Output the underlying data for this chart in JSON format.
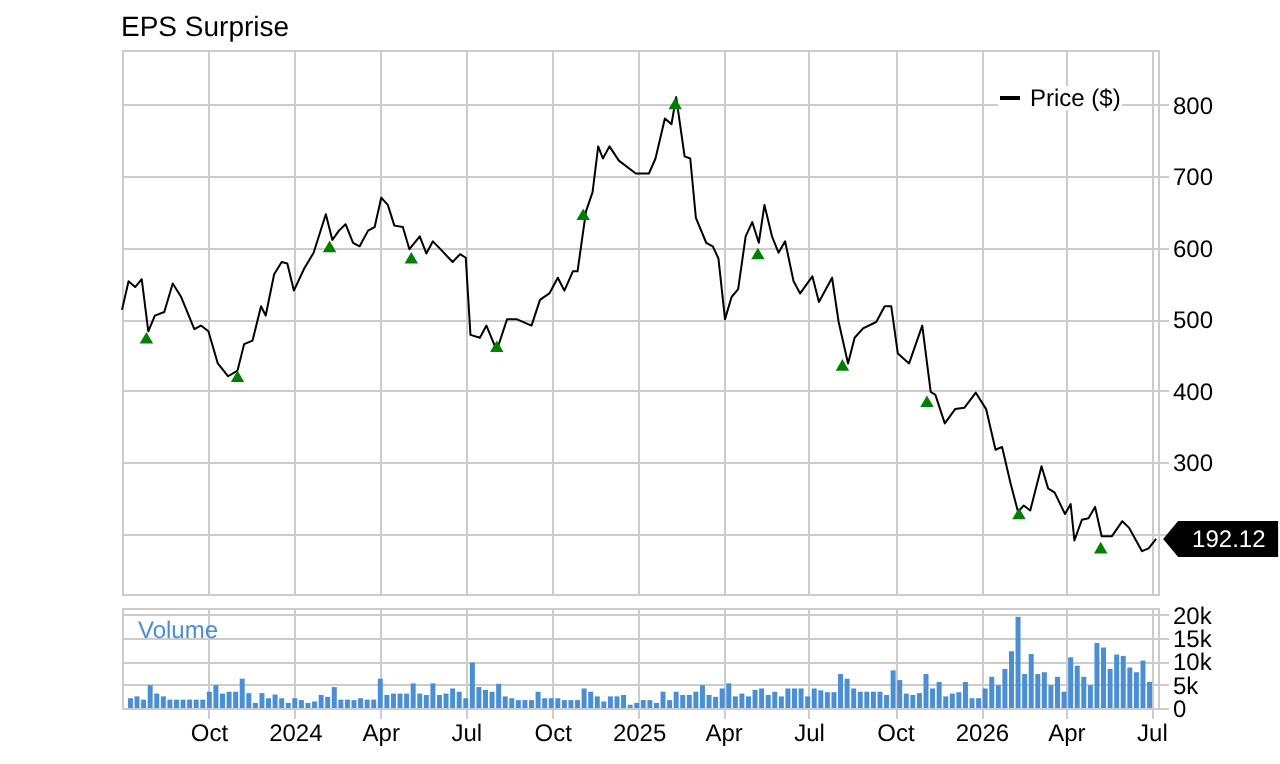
{
  "chart_data": [
    {
      "type": "line",
      "title": "EPS Surprise",
      "x": [
        "2023-07-01",
        "2023-07-08",
        "2023-07-15",
        "2023-07-22",
        "2023-07-29",
        "2023-08-05",
        "2023-08-15",
        "2023-08-24",
        "2023-09-02",
        "2023-09-16",
        "2023-09-23",
        "2023-10-01",
        "2023-10-11",
        "2023-10-22",
        "2023-11-01",
        "2023-11-08",
        "2023-11-17",
        "2023-11-26",
        "2023-12-01",
        "2023-12-10",
        "2023-12-18",
        "2023-12-24",
        "2023-12-31",
        "2024-01-11",
        "2024-01-21",
        "2024-02-03",
        "2024-02-10",
        "2024-02-17",
        "2024-02-24",
        "2024-03-03",
        "2024-03-10",
        "2024-03-19",
        "2024-03-26",
        "2024-04-02",
        "2024-04-09",
        "2024-04-16",
        "2024-04-25",
        "2024-05-02",
        "2024-05-13",
        "2024-05-20",
        "2024-05-27",
        "2024-06-04",
        "2024-06-17",
        "2024-06-25",
        "2024-07-01",
        "2024-07-06",
        "2024-07-16",
        "2024-07-23",
        "2024-08-03",
        "2024-08-14",
        "2024-08-24",
        "2024-09-09",
        "2024-09-18",
        "2024-09-28",
        "2024-10-07",
        "2024-10-14",
        "2024-10-23",
        "2024-10-28",
        "2024-11-06",
        "2024-11-13",
        "2024-11-19",
        "2024-11-24",
        "2024-12-01",
        "2024-12-11",
        "2024-12-29",
        "2025-01-12",
        "2025-01-19",
        "2025-01-29",
        "2025-02-05",
        "2025-02-10",
        "2025-02-19",
        "2025-02-25",
        "2025-03-03",
        "2025-03-14",
        "2025-03-21",
        "2025-03-27",
        "2025-04-03",
        "2025-04-10",
        "2025-04-17",
        "2025-04-25",
        "2025-05-02",
        "2025-05-09",
        "2025-05-15",
        "2025-05-23",
        "2025-05-30",
        "2025-06-06",
        "2025-06-15",
        "2025-06-22",
        "2025-07-05",
        "2025-07-12",
        "2025-07-26",
        "2025-08-02",
        "2025-08-12",
        "2025-08-19",
        "2025-08-28",
        "2025-09-11",
        "2025-09-20",
        "2025-09-27",
        "2025-10-04",
        "2025-10-16",
        "2025-10-30",
        "2025-11-08",
        "2025-11-13",
        "2025-11-23",
        "2025-12-04",
        "2025-12-14",
        "2025-12-26",
        "2026-01-06",
        "2026-01-16",
        "2026-01-23",
        "2026-02-01",
        "2026-02-09",
        "2026-02-15",
        "2026-02-22",
        "2026-03-06",
        "2026-03-13",
        "2026-03-20",
        "2026-03-31",
        "2026-04-06",
        "2026-04-10",
        "2026-04-18",
        "2026-04-25",
        "2026-05-02",
        "2026-05-09",
        "2026-05-20",
        "2026-05-31",
        "2026-06-07",
        "2026-06-21",
        "2026-06-28",
        "2026-07-06"
      ],
      "series": [
        {
          "name": "Price ($)",
          "color": "#000000",
          "values": [
            513,
            553,
            545,
            556,
            483,
            505,
            510,
            550,
            531,
            486,
            491,
            483,
            438,
            420,
            428,
            465,
            470,
            518,
            505,
            563,
            580,
            578,
            540,
            571,
            593,
            647,
            611,
            624,
            633,
            607,
            602,
            624,
            629,
            670,
            660,
            631,
            629,
            598,
            616,
            592,
            609,
            598,
            580,
            591,
            586,
            478,
            474,
            491,
            456,
            500,
            500,
            491,
            527,
            536,
            558,
            540,
            567,
            567,
            651,
            678,
            742,
            725,
            742,
            722,
            704,
            704,
            725,
            781,
            773,
            811,
            728,
            725,
            642,
            607,
            602,
            585,
            500,
            531,
            542,
            616,
            636,
            607,
            660,
            616,
            593,
            609,
            553,
            536,
            560,
            524,
            558,
            496,
            438,
            474,
            487,
            496,
            518,
            518,
            452,
            438,
            491,
            398,
            394,
            354,
            374,
            376,
            397,
            374,
            317,
            321,
            270,
            230,
            239,
            232,
            294,
            263,
            257,
            227,
            241,
            190,
            219,
            221,
            237,
            196,
            196,
            217,
            208,
            175,
            179,
            192.12
          ]
        },
        {
          "type": "scatter",
          "marker": "triangle",
          "color": "#008000",
          "x": [
            "2023-07-27",
            "2023-11-01",
            "2024-02-07",
            "2024-05-04",
            "2024-08-03",
            "2024-11-03",
            "2025-02-09",
            "2025-05-08",
            "2025-08-06",
            "2025-11-04",
            "2026-02-10",
            "2026-05-08"
          ],
          "values": [
            474,
            420,
            602,
            586,
            462,
            647,
            802,
            592,
            436,
            385,
            228,
            180
          ]
        }
      ],
      "xlim": [
        "2023-07-01",
        "2026-07-08"
      ],
      "xticks": [
        {
          "value": "2023-10-01",
          "label": null
        },
        {
          "value": "2024-01-01",
          "label": null
        },
        {
          "value": "2024-04-01",
          "label": null
        },
        {
          "value": "2024-07-01",
          "label": null
        },
        {
          "value": "2024-10-01",
          "label": null
        },
        {
          "value": "2025-01-01",
          "label": null
        },
        {
          "value": "2025-04-01",
          "label": null
        },
        {
          "value": "2025-07-01",
          "label": null
        },
        {
          "value": "2025-10-01",
          "label": null
        },
        {
          "value": "2026-01-01",
          "label": null
        },
        {
          "value": "2026-04-01",
          "label": null
        },
        {
          "value": "2026-07-01",
          "label": null
        }
      ],
      "ylim": [
        115,
        877
      ],
      "yticks": [
        {
          "value": 200,
          "label": null
        },
        300,
        400,
        500,
        600,
        700,
        800
      ],
      "grid": true,
      "legend": "top right",
      "tick_labels": "y",
      "annotations": [
        {
          "text": "192.12",
          "x": "2026-07-06",
          "y": 192.12
        }
      ]
    },
    {
      "type": "bar",
      "title": "Volume",
      "color": "#4a8fd4",
      "x": [
        "2023-07-10",
        "2023-07-17",
        "2023-07-24",
        "2023-07-31",
        "2023-08-07",
        "2023-08-14",
        "2023-08-21",
        "2023-08-28",
        "2023-09-04",
        "2023-09-11",
        "2023-09-18",
        "2023-09-25",
        "2023-10-02",
        "2023-10-09",
        "2023-10-16",
        "2023-10-23",
        "2023-10-30",
        "2023-11-06",
        "2023-11-13",
        "2023-11-20",
        "2023-11-27",
        "2023-12-04",
        "2023-12-11",
        "2023-12-18",
        "2023-12-25",
        "2024-01-01",
        "2024-01-08",
        "2024-01-15",
        "2024-01-22",
        "2024-01-29",
        "2024-02-05",
        "2024-02-12",
        "2024-02-19",
        "2024-02-26",
        "2024-03-04",
        "2024-03-11",
        "2024-03-18",
        "2024-03-25",
        "2024-04-01",
        "2024-04-08",
        "2024-04-15",
        "2024-04-22",
        "2024-04-29",
        "2024-05-06",
        "2024-05-13",
        "2024-05-20",
        "2024-05-27",
        "2024-06-03",
        "2024-06-10",
        "2024-06-17",
        "2024-06-24",
        "2024-07-01",
        "2024-07-08",
        "2024-07-15",
        "2024-07-22",
        "2024-07-29",
        "2024-08-05",
        "2024-08-12",
        "2024-08-19",
        "2024-08-26",
        "2024-09-02",
        "2024-09-09",
        "2024-09-16",
        "2024-09-23",
        "2024-09-30",
        "2024-10-07",
        "2024-10-14",
        "2024-10-21",
        "2024-10-28",
        "2024-11-04",
        "2024-11-11",
        "2024-11-18",
        "2024-11-25",
        "2024-12-02",
        "2024-12-09",
        "2024-12-16",
        "2024-12-23",
        "2024-12-30",
        "2025-01-06",
        "2025-01-13",
        "2025-01-20",
        "2025-01-27",
        "2025-02-03",
        "2025-02-10",
        "2025-02-17",
        "2025-02-24",
        "2025-03-03",
        "2025-03-10",
        "2025-03-17",
        "2025-03-24",
        "2025-03-31",
        "2025-04-07",
        "2025-04-14",
        "2025-04-21",
        "2025-04-28",
        "2025-05-05",
        "2025-05-12",
        "2025-05-19",
        "2025-05-26",
        "2025-06-02",
        "2025-06-09",
        "2025-06-16",
        "2025-06-23",
        "2025-06-30",
        "2025-07-07",
        "2025-07-14",
        "2025-07-21",
        "2025-07-28",
        "2025-08-04",
        "2025-08-11",
        "2025-08-18",
        "2025-08-25",
        "2025-09-01",
        "2025-09-08",
        "2025-09-15",
        "2025-09-22",
        "2025-09-29",
        "2025-10-06",
        "2025-10-13",
        "2025-10-20",
        "2025-10-27",
        "2025-11-03",
        "2025-11-10",
        "2025-11-17",
        "2025-11-24",
        "2025-12-01",
        "2025-12-08",
        "2025-12-15",
        "2025-12-22",
        "2025-12-29",
        "2026-01-05",
        "2026-01-12",
        "2026-01-19",
        "2026-01-26",
        "2026-02-02",
        "2026-02-09",
        "2026-02-16",
        "2026-02-23",
        "2026-03-02",
        "2026-03-09",
        "2026-03-16",
        "2026-03-23",
        "2026-03-30",
        "2026-04-06",
        "2026-04-13",
        "2026-04-20",
        "2026-04-27",
        "2026-05-04",
        "2026-05-11",
        "2026-05-18",
        "2026-05-25",
        "2026-06-01",
        "2026-06-08",
        "2026-06-15",
        "2026-06-22",
        "2026-06-29"
      ],
      "values": [
        2100,
        2500,
        1800,
        4900,
        3100,
        2500,
        1800,
        1800,
        1800,
        1800,
        1800,
        1800,
        3500,
        4900,
        3100,
        3500,
        3500,
        6300,
        3200,
        1100,
        3200,
        2100,
        2900,
        2100,
        1100,
        2100,
        1700,
        1100,
        1400,
        2800,
        2400,
        4500,
        1800,
        1800,
        1700,
        2100,
        1800,
        1800,
        6300,
        2800,
        3100,
        3100,
        3100,
        5300,
        3100,
        2800,
        5300,
        2800,
        3100,
        4200,
        3500,
        2100,
        9800,
        4500,
        3900,
        3500,
        5200,
        2500,
        2100,
        1700,
        1700,
        1700,
        3500,
        2100,
        2100,
        2100,
        1700,
        1700,
        1700,
        4200,
        3500,
        2500,
        1400,
        2500,
        2500,
        2800,
        700,
        1100,
        1700,
        1700,
        1100,
        3500,
        1700,
        3500,
        2800,
        2800,
        3500,
        4900,
        2800,
        2400,
        4200,
        5300,
        2500,
        3100,
        2500,
        3900,
        4200,
        2800,
        3500,
        2500,
        4200,
        4200,
        4200,
        2500,
        4200,
        3800,
        3400,
        3400,
        7300,
        6300,
        4200,
        3500,
        3500,
        3500,
        3500,
        2800,
        8100,
        6000,
        3100,
        2800,
        3200,
        7300,
        4200,
        5600,
        2500,
        3100,
        3400,
        5600,
        2100,
        2100,
        4200,
        6700,
        4900,
        8400,
        12200,
        19600,
        7300,
        11600,
        7300,
        7700,
        4900,
        6700,
        3500,
        10900,
        9100,
        6700,
        4900,
        14000,
        13000,
        8400,
        11500,
        11200,
        8700,
        7700,
        10200,
        5600
      ],
      "xlim": [
        "2023-07-01",
        "2026-07-08"
      ],
      "xticks": [
        {
          "value": "2023-10-01",
          "label": "Oct"
        },
        {
          "value": "2024-01-01",
          "label": "2024"
        },
        {
          "value": "2024-04-01",
          "label": "Apr"
        },
        {
          "value": "2024-07-01",
          "label": "Jul"
        },
        {
          "value": "2024-10-01",
          "label": "Oct"
        },
        {
          "value": "2025-01-01",
          "label": "2025"
        },
        {
          "value": "2025-04-01",
          "label": "Apr"
        },
        {
          "value": "2025-07-01",
          "label": "Jul"
        },
        {
          "value": "2025-10-01",
          "label": "Oct"
        },
        {
          "value": "2026-01-01",
          "label": "2026"
        },
        {
          "value": "2026-04-01",
          "label": "Apr"
        },
        {
          "value": "2026-07-01",
          "label": "Jul"
        }
      ],
      "ylim": [
        0,
        21500
      ],
      "yticks": [
        0,
        {
          "value": 5000,
          "label": "5k"
        },
        {
          "value": 10000,
          "label": "10k"
        },
        {
          "value": 15000,
          "label": "15k"
        },
        {
          "value": 20000,
          "label": "20k"
        }
      ],
      "grid": true
    }
  ]
}
